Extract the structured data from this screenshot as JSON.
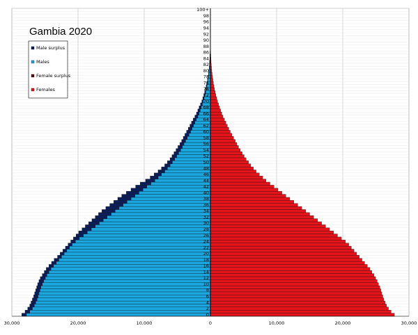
{
  "chart_data": {
    "type": "bar",
    "title": "Gambia 2020",
    "orientation": "horizontal-pyramid",
    "xlim": [
      -30000,
      30000
    ],
    "x_ticks": [
      -30000,
      -20000,
      -10000,
      0,
      10000,
      20000,
      30000
    ],
    "x_tick_labels": [
      "30,000",
      "20,000",
      "10,000",
      "0",
      "10,000",
      "20,000",
      "30,000"
    ],
    "age_ticks": [
      0,
      2,
      4,
      6,
      8,
      10,
      12,
      14,
      16,
      18,
      20,
      22,
      24,
      26,
      28,
      30,
      32,
      34,
      36,
      38,
      40,
      42,
      44,
      46,
      48,
      50,
      52,
      54,
      56,
      58,
      60,
      62,
      64,
      66,
      68,
      70,
      72,
      74,
      76,
      78,
      80,
      82,
      84,
      86,
      88,
      90,
      92,
      94,
      96,
      98,
      100
    ],
    "age_tick_labels": [
      "0",
      "2",
      "4",
      "6",
      "8",
      "10",
      "12",
      "14",
      "16",
      "18",
      "20",
      "22",
      "24",
      "26",
      "28",
      "30",
      "32",
      "34",
      "36",
      "38",
      "40",
      "42",
      "44",
      "46",
      "48",
      "50",
      "52",
      "54",
      "56",
      "58",
      "60",
      "62",
      "64",
      "66",
      "68",
      "70",
      "72",
      "74",
      "76",
      "78",
      "80",
      "82",
      "84",
      "86",
      "88",
      "90",
      "92",
      "94",
      "96",
      "98",
      "100+"
    ],
    "legend": {
      "position": "top-left",
      "entries": [
        {
          "name": "Male surplus",
          "color": "#0b1e5a"
        },
        {
          "name": "Males",
          "color": "#1aa7e0"
        },
        {
          "name": "Female surplus",
          "color": "#5c0d0d"
        },
        {
          "name": "Females",
          "color": "#e5131a"
        }
      ]
    },
    "grid": true,
    "ages": [
      0,
      1,
      2,
      3,
      4,
      5,
      6,
      7,
      8,
      9,
      10,
      11,
      12,
      13,
      14,
      15,
      16,
      17,
      18,
      19,
      20,
      21,
      22,
      23,
      24,
      25,
      26,
      27,
      28,
      29,
      30,
      31,
      32,
      33,
      34,
      35,
      36,
      37,
      38,
      39,
      40,
      41,
      42,
      43,
      44,
      45,
      46,
      47,
      48,
      49,
      50,
      51,
      52,
      53,
      54,
      55,
      56,
      57,
      58,
      59,
      60,
      61,
      62,
      63,
      64,
      65,
      66,
      67,
      68,
      69,
      70,
      71,
      72,
      73,
      74,
      75,
      76,
      77,
      78,
      79,
      80,
      81,
      82,
      83,
      84,
      85,
      86,
      87,
      88,
      89,
      90,
      91,
      92,
      93,
      94,
      95,
      96,
      97,
      98,
      99,
      100
    ],
    "males": [
      28500,
      28000,
      27600,
      27300,
      27100,
      26900,
      26700,
      26550,
      26400,
      26250,
      26100,
      25900,
      25700,
      25400,
      25100,
      24800,
      24400,
      24000,
      23600,
      23100,
      22700,
      22300,
      21900,
      21500,
      21100,
      20700,
      20300,
      19900,
      19400,
      18900,
      18400,
      17900,
      17400,
      16900,
      16400,
      15800,
      15200,
      14600,
      14000,
      13400,
      12700,
      12000,
      11300,
      10600,
      9800,
      9100,
      8500,
      7900,
      7400,
      6900,
      6500,
      6100,
      5800,
      5500,
      5200,
      4900,
      4600,
      4350,
      4100,
      3850,
      3600,
      3350,
      3100,
      2850,
      2600,
      2350,
      2100,
      1900,
      1700,
      1500,
      1300,
      1150,
      1000,
      870,
      750,
      640,
      540,
      450,
      370,
      300,
      240,
      190,
      150,
      120,
      90,
      70,
      50,
      36,
      26,
      18,
      12,
      8,
      5,
      3,
      2,
      1,
      1,
      1,
      0,
      0,
      0
    ],
    "females": [
      27800,
      27300,
      26900,
      26600,
      26400,
      26200,
      26050,
      25900,
      25750,
      25600,
      25400,
      25200,
      24950,
      24700,
      24400,
      24100,
      23700,
      23300,
      22900,
      22500,
      22100,
      21700,
      21300,
      20900,
      20400,
      19800,
      19200,
      18600,
      18000,
      17400,
      16800,
      16200,
      15600,
      15000,
      14400,
      13800,
      13200,
      12600,
      12000,
      11400,
      10800,
      10200,
      9600,
      9000,
      8400,
      7900,
      7400,
      6900,
      6500,
      6100,
      5750,
      5400,
      5100,
      4800,
      4500,
      4250,
      4000,
      3750,
      3500,
      3250,
      3000,
      2780,
      2560,
      2340,
      2120,
      1900,
      1720,
      1540,
      1380,
      1220,
      1080,
      950,
      830,
      720,
      620,
      530,
      450,
      380,
      315,
      260,
      210,
      165,
      130,
      100,
      75,
      55,
      40,
      28,
      19,
      13,
      8,
      5,
      3,
      2,
      1,
      1,
      1,
      0,
      0,
      0,
      0
    ]
  }
}
